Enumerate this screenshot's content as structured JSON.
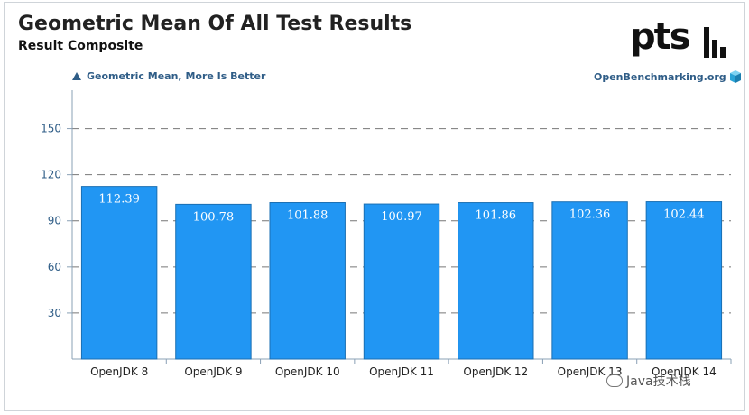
{
  "header": {
    "title": "Geometric Mean Of All Test Results",
    "subtitle": "Result Composite",
    "logo_text": "pts",
    "legend_text": "Geometric Mean, More Is Better",
    "site_text": "OpenBenchmarking.org",
    "watermark_text": "Java技术栈",
    "watermark_icon": "wechat-icon"
  },
  "colors": {
    "bar_fill": "#2196f3",
    "bar_stroke": "#1a6fb3",
    "tick_label": "#2f5d87",
    "grid": "#777777",
    "axis": "#8aa0b5"
  },
  "chart_data": {
    "type": "bar",
    "categories": [
      "OpenJDK 8",
      "OpenJDK 9",
      "OpenJDK 10",
      "OpenJDK 11",
      "OpenJDK 12",
      "OpenJDK 13",
      "OpenJDK 14"
    ],
    "values": [
      112.39,
      100.78,
      101.88,
      100.97,
      101.86,
      102.36,
      102.44
    ],
    "value_labels": [
      "112.39",
      "100.78",
      "101.88",
      "100.97",
      "101.86",
      "102.36",
      "102.44"
    ],
    "yticks": [
      30,
      60,
      90,
      120,
      150
    ],
    "ylim": [
      0,
      175
    ],
    "grid": true,
    "title": "Geometric Mean Of All Test Results",
    "xlabel": "",
    "ylabel": ""
  }
}
